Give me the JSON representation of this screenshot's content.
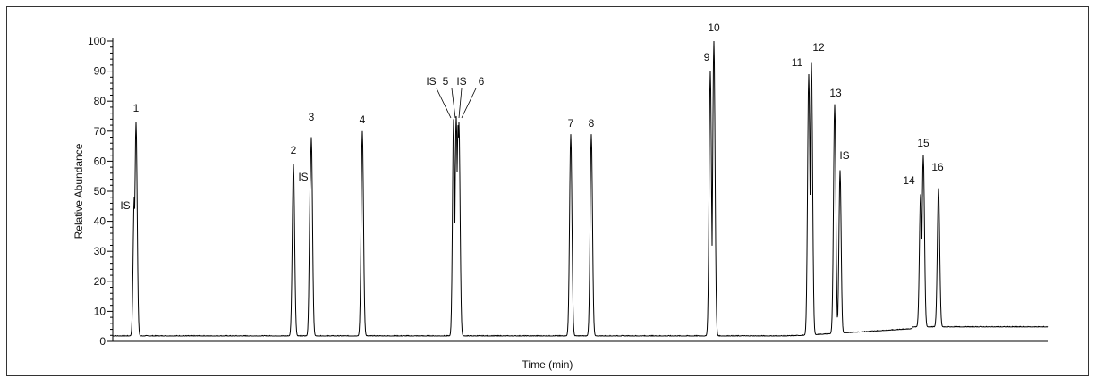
{
  "chart_data": {
    "type": "line",
    "title": "",
    "xlabel": "Time (min)",
    "ylabel": "Relative Abundance",
    "ylim": [
      0,
      100
    ],
    "yticks": [
      "0",
      "10",
      "20",
      "30",
      "40",
      "50",
      "60",
      "70",
      "80",
      "90",
      "100"
    ],
    "grid": false,
    "legend": "none",
    "line_color": "#000000",
    "series": [
      {
        "peaks": [
          {
            "label": "1",
            "height": 73
          },
          {
            "label": "2",
            "height": 59
          },
          {
            "label": "3",
            "height": 68
          },
          {
            "label": "4",
            "height": 70
          },
          {
            "label": "5",
            "height": 75
          },
          {
            "label": "6",
            "height": 73
          },
          {
            "label": "7",
            "height": 69
          },
          {
            "label": "8",
            "height": 69
          },
          {
            "label": "9",
            "height": 90
          },
          {
            "label": "10",
            "height": 100
          },
          {
            "label": "11",
            "height": 89
          },
          {
            "label": "12",
            "height": 93
          },
          {
            "label": "13",
            "height": 79
          },
          {
            "label": "14",
            "height": 49
          },
          {
            "label": "15",
            "height": 62
          },
          {
            "label": "16",
            "height": 51
          }
        ],
        "internal_standard_peaks": [
          {
            "label": "IS",
            "height": 48
          },
          {
            "label": "IS",
            "height": 55
          },
          {
            "label": "IS",
            "height": 74
          },
          {
            "label": "IS",
            "height": 72
          },
          {
            "label": "IS",
            "height": 57
          }
        ]
      }
    ]
  }
}
